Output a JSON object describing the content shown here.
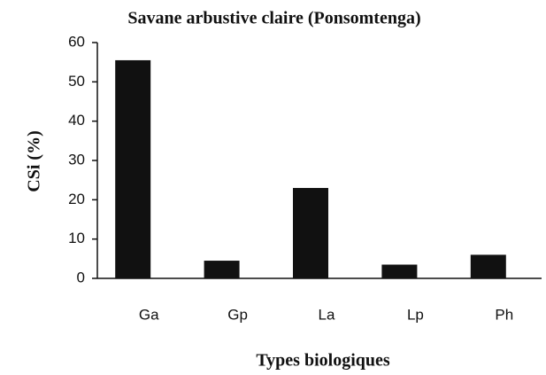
{
  "chart_data": {
    "type": "bar",
    "title": "Savane arbustive claire (Ponsomtenga)",
    "x_label": "Types biologiques",
    "y_label": "CSi (%)",
    "categories": [
      "Ga",
      "Gp",
      "La",
      "Lp",
      "Ph"
    ],
    "values": [
      55.5,
      4.5,
      23,
      3.5,
      6
    ],
    "color": "#111111",
    "ylim": [
      0,
      60
    ],
    "yticks": [
      0,
      10,
      20,
      30,
      40,
      50,
      60
    ],
    "grid": false
  }
}
